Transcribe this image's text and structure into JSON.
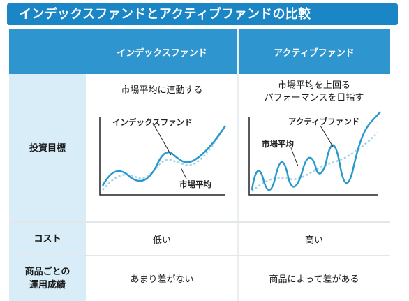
{
  "title": "インデックスファンドとアクティブファンドの比較",
  "columns": [
    "",
    "インデックスファンド",
    "アクティブファンド"
  ],
  "rows": {
    "objective": {
      "label": "投資目標",
      "index_text": "市場平均に連動する",
      "active_text_1": "市場平均を上回る",
      "active_text_2": "パフォーマンスを目指す",
      "index_chart_label_fund": "インデックスファンド",
      "index_chart_label_market": "市場平均",
      "active_chart_label_fund": "アクティブファンド",
      "active_chart_label_market": "市場平均"
    },
    "cost": {
      "label": "コスト",
      "index": "低い",
      "active": "高い"
    },
    "performance": {
      "label_1": "商品ごとの",
      "label_2": "運用成績",
      "index": "あまり差がない",
      "active": "商品によって差がある"
    }
  },
  "colors": {
    "header_blue": "#2f95cf",
    "title_blue": "#1b86c6",
    "row_label_bg": "#d9edf8",
    "fund_line": "#2a98cc",
    "market_line": "#9fd3e6"
  }
}
